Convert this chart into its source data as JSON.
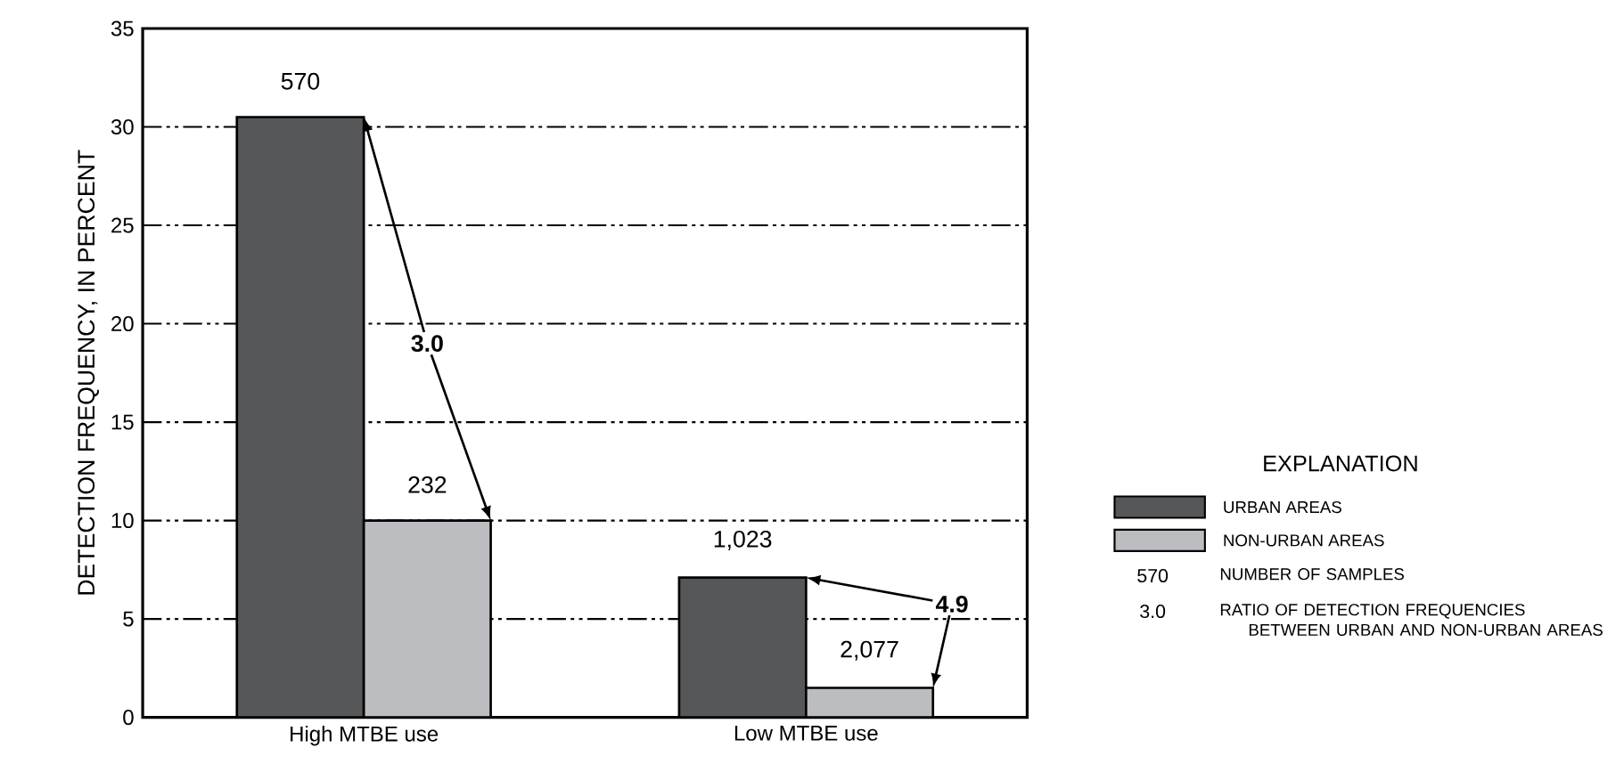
{
  "chart_data": {
    "type": "bar",
    "ylabel": "DETECTION FREQUENCY, IN PERCENT",
    "categories": [
      "High MTBE use",
      "Low MTBE use"
    ],
    "series": [
      {
        "name": "URBAN AREAS",
        "color": "#555759",
        "values": [
          30.5,
          7.1
        ]
      },
      {
        "name": "NON-URBAN AREAS",
        "color": "#bcbdc0",
        "values": [
          10.0,
          1.5
        ]
      }
    ],
    "ylim": [
      0,
      35
    ],
    "yticks": [
      0,
      5,
      10,
      15,
      20,
      25,
      30,
      35
    ],
    "grid": "y",
    "legend": "right",
    "legend_title": "EXPLANATION",
    "annotations": [
      {
        "text": "3.0",
        "x": "High MTBE use",
        "y": 19
      },
      "4.9",
      {
        "text": "570",
        "x": "High MTBE use",
        "y": 30.5
      },
      {
        "text": "232",
        "x": "High MTBE use",
        "y": 10.0
      },
      {
        "text": "1,023",
        "x": "Low MTBE use",
        "y": 7.1
      },
      {
        "text": "2,077",
        "x": "Low MTBE use",
        "y": 1.5
      },
      "570",
      "NUMBER OF SAMPLES",
      "3.0",
      "RATIO OF DETECTION FREQUENCIES BETWEEN URBAN AND NON-URBAN AREAS"
    ]
  }
}
